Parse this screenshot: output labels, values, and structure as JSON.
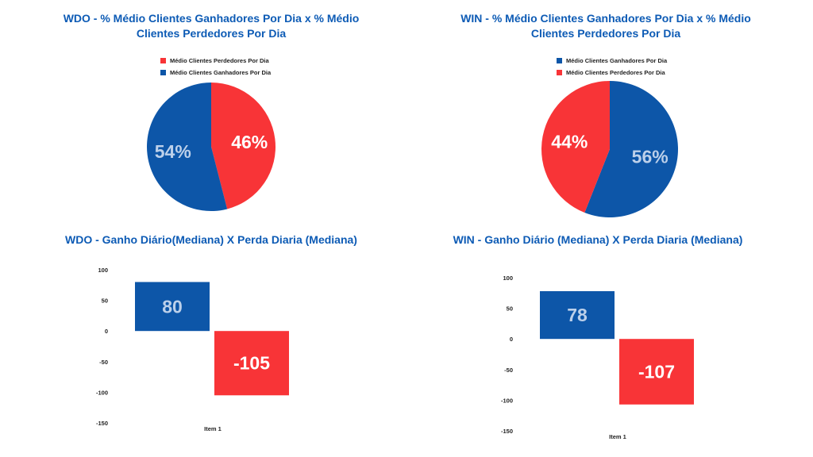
{
  "colors": {
    "gain": "#0d56a8",
    "loss": "#f83437",
    "gain_text": "#bcd0ea",
    "loss_text": "#ffffff",
    "title": "#0d5bb5"
  },
  "chart_data": [
    {
      "type": "pie",
      "title_line1": "WDO - % Médio Clientes Ganhadores Por Dia x % Médio",
      "title_line2": "Clientes Perdedores Por Dia",
      "legend": [
        "Médio Clientes Perdedores Por Dia",
        "Médio Clientes Ganhadores Por Dia"
      ],
      "slices": [
        {
          "name": "Médio Clientes Perdedores Por Dia",
          "value": 46,
          "label": "46%",
          "color": "#f83437"
        },
        {
          "name": "Médio Clientes Ganhadores Por Dia",
          "value": 54,
          "label": "54%",
          "color": "#0d56a8"
        }
      ]
    },
    {
      "type": "pie",
      "title_line1": "WIN - % Médio Clientes Ganhadores Por Dia x % Médio",
      "title_line2": "Clientes Perdedores Por Dia",
      "legend": [
        "Médio Clientes Ganhadores Por Dia",
        "Médio Clientes Perdedores Por Dia"
      ],
      "slices": [
        {
          "name": "Médio Clientes Ganhadores Por Dia",
          "value": 56,
          "label": "56%",
          "color": "#0d56a8"
        },
        {
          "name": "Médio Clientes Perdedores Por Dia",
          "value": 44,
          "label": "44%",
          "color": "#f83437"
        }
      ]
    },
    {
      "type": "bar",
      "title": "WDO - Ganho Diário(Mediana) X Perda Diaria (Mediana)",
      "categories": [
        "Item 1"
      ],
      "y_ticks": [
        "100",
        "50",
        "0",
        "-50",
        "-100",
        "-150"
      ],
      "ylim": [
        -150,
        100
      ],
      "series": [
        {
          "value": 80,
          "label": "80",
          "color": "#0d56a8"
        },
        {
          "value": -105,
          "label": "-105",
          "color": "#f83437"
        }
      ]
    },
    {
      "type": "bar",
      "title": "WIN - Ganho Diário (Mediana) X Perda Diaria (Mediana)",
      "categories": [
        "Item 1"
      ],
      "y_ticks": [
        "100",
        "50",
        "0",
        "-50",
        "-100",
        "-150"
      ],
      "ylim": [
        -150,
        100
      ],
      "series": [
        {
          "value": 78,
          "label": "78",
          "color": "#0d56a8"
        },
        {
          "value": -107,
          "label": "-107",
          "color": "#f83437"
        }
      ]
    }
  ]
}
